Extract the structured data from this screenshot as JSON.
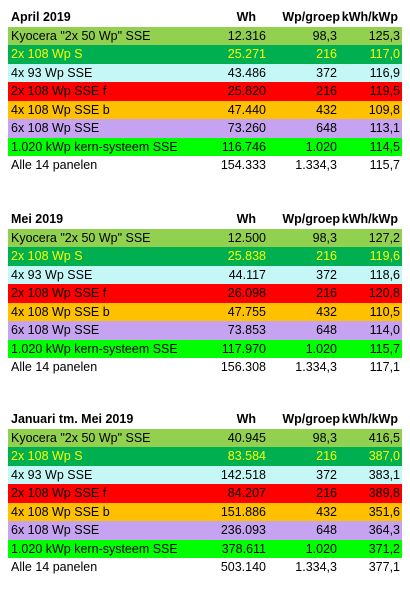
{
  "colors": {
    "row0": "#92d050",
    "row1": "#00b050",
    "row2": "#c6f7f7",
    "row3": "#ff0000",
    "row4": "#ffc000",
    "row5": "#c6a3f0",
    "row6": "#00ff00",
    "row7": "#ffffff",
    "text_row1": "#ffff00"
  },
  "sections": [
    {
      "header": {
        "name": "April 2019",
        "wh": "Wh",
        "wp": "Wp/groep",
        "kwh": "kWh/kWp"
      },
      "rows": [
        {
          "name": "Kyocera \"2x 50 Wp\" SSE",
          "wh": "12.316",
          "wp": "98,3",
          "kwh": "125,3"
        },
        {
          "name": "2x 108 Wp S",
          "wh": "25.271",
          "wp": "216",
          "kwh": "117,0"
        },
        {
          "name": "4x 93 Wp SSE",
          "wh": "43.486",
          "wp": "372",
          "kwh": "116,9"
        },
        {
          "name": "2x 108 Wp SSE f",
          "wh": "25.820",
          "wp": "216",
          "kwh": "119,5"
        },
        {
          "name": "4x 108 Wp SSE b",
          "wh": "47.440",
          "wp": "432",
          "kwh": "109,8"
        },
        {
          "name": "6x 108 Wp SSE",
          "wh": "73.260",
          "wp": "648",
          "kwh": "113,1"
        },
        {
          "name": "1.020 kWp kern-systeem SSE",
          "wh": "116.746",
          "wp": "1.020",
          "kwh": "114,5"
        },
        {
          "name": "Alle 14 panelen",
          "wh": "154.333",
          "wp": "1.334,3",
          "kwh": "115,7"
        }
      ]
    },
    {
      "header": {
        "name": "Mei 2019",
        "wh": "Wh",
        "wp": "Wp/groep",
        "kwh": "kWh/kWp"
      },
      "rows": [
        {
          "name": "Kyocera \"2x 50 Wp\" SSE",
          "wh": "12.500",
          "wp": "98,3",
          "kwh": "127,2"
        },
        {
          "name": "2x 108 Wp S",
          "wh": "25.838",
          "wp": "216",
          "kwh": "119,6"
        },
        {
          "name": "4x 93 Wp SSE",
          "wh": "44.117",
          "wp": "372",
          "kwh": "118,6"
        },
        {
          "name": "2x 108 Wp SSE f",
          "wh": "26.098",
          "wp": "216",
          "kwh": "120,8"
        },
        {
          "name": "4x 108 Wp SSE b",
          "wh": "47.755",
          "wp": "432",
          "kwh": "110,5"
        },
        {
          "name": "6x 108 Wp SSE",
          "wh": "73.853",
          "wp": "648",
          "kwh": "114,0"
        },
        {
          "name": "1.020 kWp kern-systeem SSE",
          "wh": "117.970",
          "wp": "1.020",
          "kwh": "115,7"
        },
        {
          "name": "Alle 14 panelen",
          "wh": "156.308",
          "wp": "1.334,3",
          "kwh": "117,1"
        }
      ]
    },
    {
      "header": {
        "name": "Januari tm. Mei 2019",
        "wh": "Wh",
        "wp": "Wp/groep",
        "kwh": "kWh/kWp"
      },
      "rows": [
        {
          "name": "Kyocera \"2x 50 Wp\" SSE",
          "wh": "40.945",
          "wp": "98,3",
          "kwh": "416,5"
        },
        {
          "name": "2x 108 Wp S",
          "wh": "83.584",
          "wp": "216",
          "kwh": "387,0"
        },
        {
          "name": "4x 93 Wp SSE",
          "wh": "142.518",
          "wp": "372",
          "kwh": "383,1"
        },
        {
          "name": "2x 108 Wp SSE f",
          "wh": "84.207",
          "wp": "216",
          "kwh": "389,8"
        },
        {
          "name": "4x 108 Wp SSE b",
          "wh": "151.886",
          "wp": "432",
          "kwh": "351,6"
        },
        {
          "name": "6x 108 Wp SSE",
          "wh": "236.093",
          "wp": "648",
          "kwh": "364,3"
        },
        {
          "name": "1.020 kWp kern-systeem SSE",
          "wh": "378.611",
          "wp": "1.020",
          "kwh": "371,2"
        },
        {
          "name": "Alle 14 panelen",
          "wh": "503.140",
          "wp": "1.334,3",
          "kwh": "377,1"
        }
      ]
    }
  ]
}
